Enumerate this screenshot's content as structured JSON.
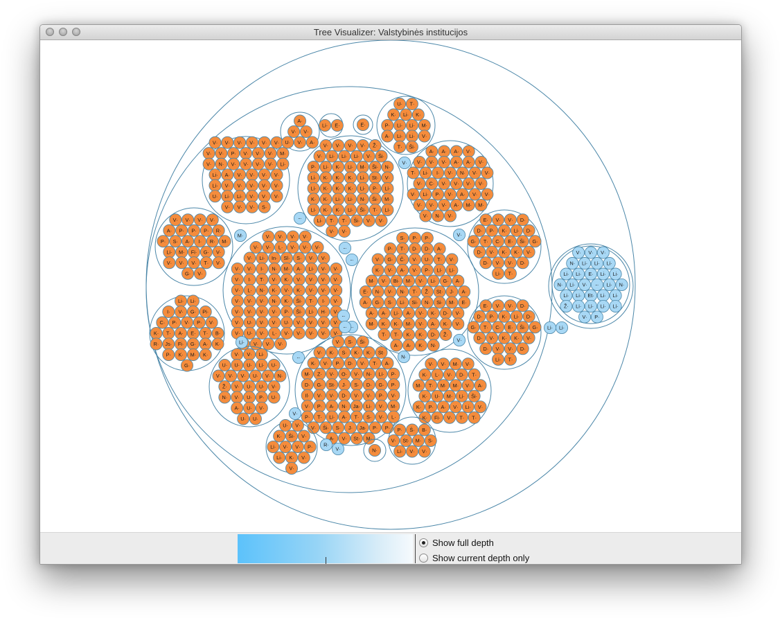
{
  "window": {
    "title": "Tree Visualizer: Valstybinės institucijos"
  },
  "legend": {
    "gradient_start": "#5cc2fb",
    "gradient_end": "#f6fafd"
  },
  "options": [
    {
      "label": "Show full depth",
      "checked": true
    },
    {
      "label": "Show current depth only",
      "checked": false
    }
  ],
  "colors": {
    "leaf_orange": "#f58c3c",
    "leaf_blue": "#a8d8f5",
    "outline": "#4a86a8"
  },
  "clusters": [
    {
      "name": "valstybes-institucijos-group-1",
      "kind": "orange",
      "labels": [
        "V",
        "V",
        "V",
        "V",
        "V",
        "V",
        "V",
        "V",
        "P",
        "V",
        "V",
        "V",
        "M",
        "V",
        "N",
        "V",
        "V",
        "V",
        "V",
        "Li",
        "Li",
        "A",
        "V",
        "V",
        "V",
        "V",
        "Li",
        "V",
        "V",
        "V",
        "V",
        "V",
        "U",
        "Li",
        "Li",
        "V",
        "V",
        "V",
        "V",
        "V",
        "V",
        "S"
      ]
    },
    {
      "name": "valstybes-institucijos-group-2",
      "kind": "orange",
      "labels": [
        "A",
        "V",
        "V",
        "U",
        "V",
        "A"
      ]
    },
    {
      "name": "valstybes-institucijos-group-3",
      "kind": "orange",
      "labels": [
        "Li",
        "E"
      ]
    },
    {
      "name": "valstybes-institucijos-group-4",
      "kind": "orange",
      "labels": [
        "E"
      ]
    },
    {
      "name": "valstybes-institucijos-group-5",
      "kind": "orange",
      "labels": [
        "U",
        "T",
        "K",
        "Li",
        "K",
        "P",
        "Li",
        "Li",
        "M",
        "A",
        "Li",
        "Li",
        "V",
        "T",
        "Ši"
      ]
    },
    {
      "name": "valstybes-institucijos-group-6",
      "kind": "orange",
      "labels": [
        "V",
        "V",
        "V",
        "V",
        "Ž",
        "V",
        "Li",
        "Li",
        "Li",
        "V",
        "Ši",
        "P",
        "Li",
        "K",
        "Li",
        "M",
        "Ši",
        "N",
        "Li",
        "K",
        "K",
        "K",
        "Li",
        "St",
        "V",
        "Li",
        "K",
        "K",
        "K",
        "Li",
        "P",
        "Li",
        "K",
        "K",
        "Li",
        "Li",
        "N",
        "Ši",
        "M",
        "Li",
        "K",
        "K",
        "Li",
        "Ši",
        "T",
        "Li",
        "Li",
        "T",
        "T",
        "Ši",
        "V",
        "V",
        "V",
        "V"
      ]
    },
    {
      "name": "valstybes-institucijos-group-7",
      "kind": "orange",
      "labels": [
        "A",
        "A",
        "A",
        "V",
        "V",
        "V",
        "V",
        "A",
        "A",
        "V",
        "T",
        "Li",
        "I",
        "V",
        "N",
        "V",
        "V",
        "V",
        "C",
        "V",
        "V",
        "V",
        "V",
        "V",
        "Li",
        "P",
        "V",
        "A",
        "V",
        "V",
        "V",
        "V",
        "V",
        "A",
        "M",
        "M",
        "V",
        "N",
        "V"
      ]
    },
    {
      "name": "valstybes-institucijos-group-8",
      "kind": "orange",
      "labels": [
        "V",
        "V",
        "V",
        "V",
        "A",
        "P",
        "P",
        "P",
        "R",
        "P",
        "S",
        "A",
        "I",
        "R",
        "M",
        "Li",
        "M",
        "Fi",
        "G",
        "V",
        "V",
        "V",
        "V",
        "T",
        "V",
        "G",
        "V"
      ]
    },
    {
      "name": "valstybes-institucijos-group-9",
      "kind": "orange",
      "labels": [
        "V",
        "V",
        "V",
        "V",
        "V",
        "V",
        "L",
        "V",
        "V",
        "V",
        "V",
        "Li",
        "Institucija",
        "Sl",
        "S",
        "V",
        "V",
        "V",
        "V",
        "I",
        "N",
        "M",
        "A",
        "Li",
        "V",
        "V",
        "V",
        "I",
        "T",
        "V",
        "K",
        "V",
        "V",
        "V",
        "V",
        "V",
        "L",
        "N",
        "K",
        "V",
        "K",
        "V",
        "V",
        "V",
        "V",
        "V",
        "V",
        "N",
        "K",
        "Ši",
        "T",
        "I",
        "V",
        "V",
        "V",
        "V",
        "V",
        "P",
        "Ši",
        "Li",
        "H",
        "V",
        "V",
        "U",
        "V",
        "V",
        "U",
        "V",
        "V",
        "V",
        "V",
        "V",
        "U",
        "V",
        "L",
        "V",
        "V",
        "V",
        "V",
        "V",
        "V",
        "V",
        "V",
        "V"
      ]
    },
    {
      "name": "valstybes-institucijos-group-10",
      "kind": "orange",
      "labels": [
        "S",
        "P",
        "P",
        "P",
        "T",
        "D",
        "D",
        "A",
        "V",
        "G",
        "Č",
        "V",
        "U",
        "T",
        "V",
        "K",
        "V",
        "A",
        "V",
        "P",
        "Li",
        "Li",
        "M",
        "V",
        "Bi",
        "M",
        "V",
        "Li",
        "G",
        "A",
        "E",
        "N",
        "V",
        "N",
        "T",
        "Ž",
        "St",
        "J",
        "A",
        "A",
        "G",
        "S",
        "Li",
        "Si",
        "N",
        "Si",
        "M",
        "E",
        "A",
        "A",
        "Li",
        "A",
        "V",
        "K",
        "D",
        "V",
        "M",
        "K",
        "K",
        "M",
        "V",
        "A",
        "K",
        "V",
        "T",
        "T",
        "K",
        "K",
        "D",
        "Ž",
        "A",
        "A",
        "K",
        "N",
        "R",
        "P",
        "S",
        "Ž"
      ]
    },
    {
      "name": "valstybes-institucijos-group-11",
      "kind": "orange",
      "labels": [
        "E",
        "V",
        "V",
        "D",
        "D",
        "P",
        "K",
        "Li",
        "D",
        "G",
        "T",
        "C",
        "E",
        "Ši",
        "G",
        "D",
        "V",
        "K",
        "K",
        "V",
        "D",
        "V",
        "V",
        "D",
        "Li",
        "T"
      ]
    },
    {
      "name": "valstybes-institucijos-group-12",
      "kind": "orange",
      "labels": [
        "Li",
        "Li",
        "I",
        "V",
        "G",
        "Pi",
        "C",
        "P",
        "V",
        "P",
        "V",
        "K",
        "T",
        "A",
        "E",
        "T",
        "B",
        "R",
        "Js",
        "Fi",
        "G",
        "A",
        "K",
        "P",
        "K",
        "M",
        "K",
        "G"
      ]
    },
    {
      "name": "valstybes-institucijos-group-13",
      "kind": "orange",
      "labels": [
        "V",
        "V",
        "Li",
        "U",
        "U",
        "U",
        "Li",
        "U",
        "V",
        "V",
        "V",
        "U",
        "V",
        "N",
        "Ž",
        "V",
        "U",
        "U",
        "V",
        "N",
        "V",
        "U",
        "P",
        "U",
        "A",
        "U",
        "V",
        "U",
        "U"
      ]
    },
    {
      "name": "valstybes-institucijos-group-14",
      "kind": "orange",
      "labels": [
        "V",
        "S",
        "Ši",
        "V",
        "K",
        "S",
        "K",
        "K",
        "St",
        "K",
        "V",
        "P",
        "D",
        "V",
        "T",
        "A",
        "M",
        "Z",
        "V",
        "O",
        "V",
        "N",
        "Li",
        "P",
        "D",
        "G",
        "St",
        "J",
        "S",
        "D",
        "G",
        "P",
        "Il",
        "V",
        "V",
        "D",
        "V",
        "V",
        "P",
        "V",
        "V",
        "P",
        "A",
        "N",
        "Ja",
        "Li",
        "V",
        "M",
        "P",
        "T",
        "Li",
        "A",
        "T",
        "S",
        "V",
        "L",
        "V",
        "Ši",
        "S",
        "J",
        "Ja",
        "P",
        "P",
        "A",
        "V",
        "St",
        "M",
        "U"
      ]
    },
    {
      "name": "valstybes-institucijos-group-15",
      "kind": "orange",
      "labels": [
        "E",
        "V",
        "V",
        "D",
        "D",
        "P",
        "K",
        "Li",
        "D",
        "G",
        "T",
        "C",
        "E",
        "Ši",
        "G",
        "D",
        "V",
        "K",
        "K",
        "V",
        "D",
        "V",
        "V",
        "D",
        "Li",
        "T"
      ]
    },
    {
      "name": "valstybes-institucijos-group-16",
      "kind": "orange",
      "labels": [
        "V",
        "V",
        "M",
        "V",
        "K",
        "L",
        "V",
        "D",
        "T",
        "M",
        "T",
        "M",
        "M",
        "V",
        "A",
        "K",
        "U",
        "M",
        "Li",
        "Ši",
        "K",
        "P",
        "A",
        "V",
        "Li",
        "V",
        "K",
        "Fi",
        "V",
        "T",
        "T"
      ]
    },
    {
      "name": "valstybes-institucijos-group-17",
      "kind": "orange",
      "labels": [
        "U",
        "V",
        "K",
        "Ši",
        "V",
        "Li",
        "V",
        "V",
        "P",
        "Li",
        "K",
        "V",
        "V"
      ]
    },
    {
      "name": "valstybes-institucijos-group-18",
      "kind": "orange",
      "labels": [
        "N"
      ]
    },
    {
      "name": "valstybes-institucijos-group-19",
      "kind": "orange",
      "labels": [
        "P",
        "Š",
        "B",
        "V",
        "St",
        "M",
        "S",
        "Li",
        "V",
        "V"
      ]
    },
    {
      "name": "valstybes-institucijos-group-20",
      "kind": "blue",
      "labels": [
        "V",
        "V",
        "V",
        "N",
        "Li",
        "Li",
        "Li",
        "Li",
        "Li",
        "E",
        "Li",
        "Li",
        "N",
        "Li",
        "V",
        "-",
        "Li",
        "N",
        "Li",
        "Li",
        "Et",
        "Li",
        "Li",
        "Ž",
        "Li",
        "Li",
        "Li",
        "Li",
        "V",
        "P",
        "V"
      ]
    }
  ],
  "loose_nodes": [
    "V",
    "-",
    "M",
    "V",
    "-",
    "-",
    "-",
    "-",
    "-",
    "Li",
    "-",
    "N",
    "V",
    "V",
    "R",
    "V",
    "Li",
    "Li"
  ]
}
